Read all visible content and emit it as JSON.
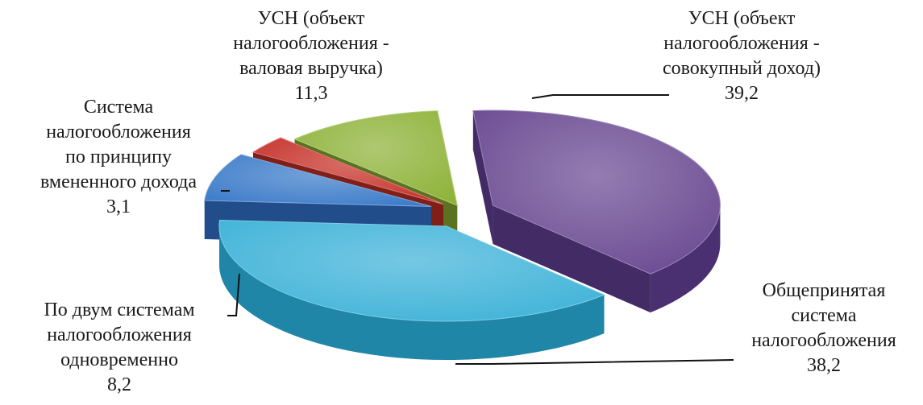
{
  "chart_data": {
    "type": "pie",
    "title": "",
    "style": "3d-exploded",
    "slices": [
      {
        "label": [
          "УСН (объект",
          "налогообложения -",
          "совокупный доход)"
        ],
        "value": 39.2,
        "value_label": "39,2",
        "top_color": "#6a4a92",
        "side_color": "#4a3070"
      },
      {
        "label": [
          "Общепринятая",
          "система",
          "налогообложения"
        ],
        "value": 38.2,
        "value_label": "38,2",
        "top_color": "#3fb3d8",
        "side_color": "#1f86a8"
      },
      {
        "label": [
          "По двум системам",
          "налогообложения",
          "одновременно"
        ],
        "value": 8.2,
        "value_label": "8,2",
        "top_color": "#3d7cc9",
        "side_color": "#26569a"
      },
      {
        "label": [
          "Система",
          "налогообложения",
          "по принципу",
          "вмененного дохода"
        ],
        "value": 3.1,
        "value_label": "3,1",
        "top_color": "#c6332b",
        "side_color": "#8e211b"
      },
      {
        "label": [
          "УСН (объект",
          "налогообложения -",
          "валовая выручка)"
        ],
        "value": 11.3,
        "value_label": "11,3",
        "top_color": "#8fb33a",
        "side_color": "#657f24"
      }
    ]
  }
}
